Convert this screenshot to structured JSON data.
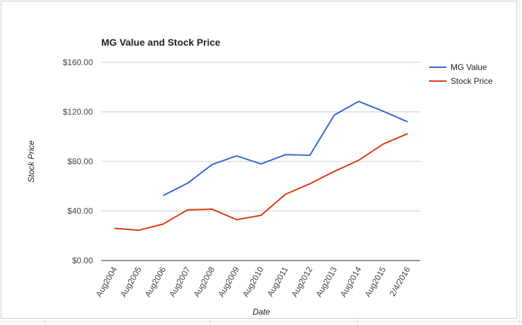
{
  "chart_data": {
    "type": "line",
    "title": "MG Value and Stock Price",
    "xlabel": "Date",
    "ylabel": "Stock Price",
    "categories": [
      "Aug2004",
      "Aug2005",
      "Aug2006",
      "Aug2007",
      "Aug2008",
      "Aug2009",
      "Aug2010",
      "Aug2011",
      "Aug2012",
      "Aug2013",
      "Aug2014",
      "Aug2015",
      "2/4/2016"
    ],
    "yticks": [
      "$0.00",
      "$40.00",
      "$80.00",
      "$120.00",
      "$160.00"
    ],
    "ylim": [
      0,
      160
    ],
    "grid": true,
    "legend_position": "right",
    "series": [
      {
        "name": "MG Value",
        "color": "#3366cc",
        "values": [
          null,
          null,
          52.5,
          62.5,
          77.5,
          84.5,
          78,
          85.5,
          85,
          117.5,
          128.5,
          120.5,
          112
        ]
      },
      {
        "name": "Stock Price",
        "color": "#dc3912",
        "values": [
          26,
          24.5,
          29.5,
          41,
          41.5,
          33,
          36.5,
          53.5,
          62,
          72,
          81,
          94,
          102.5
        ]
      }
    ]
  }
}
